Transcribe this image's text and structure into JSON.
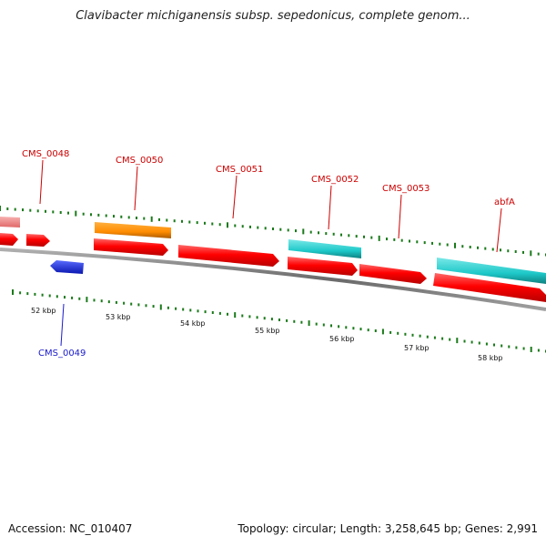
{
  "title": "Clavibacter michiganensis subsp. sepedonicus, complete genom...",
  "accession": "Accession: NC_010407",
  "summary": "Topology: circular; Length: 3,258,645 bp; Genes: 2,991",
  "colors": {
    "cds": "#ff0000",
    "cds_faint": "#f08080",
    "rna_orange": "#ff8c00",
    "gene_cyan": "#1ec8c8",
    "reverse_blue": "#1428f0",
    "tick_green": "#1a7a1a",
    "backbone": "#808080",
    "label_red": "#cc0000",
    "label_blue": "#1a1acc"
  },
  "kbp_labels": [
    "52 kbp",
    "53 kbp",
    "54 kbp",
    "55 kbp",
    "56 kbp",
    "57 kbp",
    "58 kbp"
  ],
  "gene_labels": {
    "forward": [
      "CMS_0048",
      "CMS_0050",
      "CMS_0051",
      "CMS_0052",
      "CMS_0053",
      "abfA"
    ],
    "reverse": [
      "CMS_0049"
    ]
  }
}
